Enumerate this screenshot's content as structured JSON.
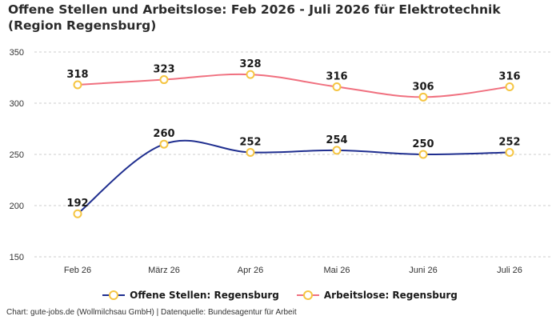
{
  "title": "Offene Stellen und Arbeitslose: Feb 2026 - Juli 2026 für Elektrotechnik (Region Regensburg)",
  "source": "Chart: gute-jobs.de (Wollmilchsau GmbH) | Datenquelle: Bundesagentur für Arbeit",
  "colors": {
    "offene": "#1f2e8f",
    "arbeitslose": "#f0707f",
    "marker": "#f5c542",
    "grid": "#cccccc"
  },
  "chart_data": {
    "type": "line",
    "categories": [
      "Feb 26",
      "März 26",
      "Apr 26",
      "Mai 26",
      "Juni 26",
      "Juli 26"
    ],
    "ylim": [
      150,
      350
    ],
    "yticks": [
      150,
      200,
      250,
      300,
      350
    ],
    "grid": true,
    "legend": "bottom-center",
    "series": [
      {
        "name": "Offene Stellen: Regensburg",
        "values": [
          192,
          260,
          252,
          254,
          250,
          252
        ]
      },
      {
        "name": "Arbeitslose: Regensburg",
        "values": [
          318,
          323,
          328,
          316,
          306,
          316
        ]
      }
    ]
  }
}
